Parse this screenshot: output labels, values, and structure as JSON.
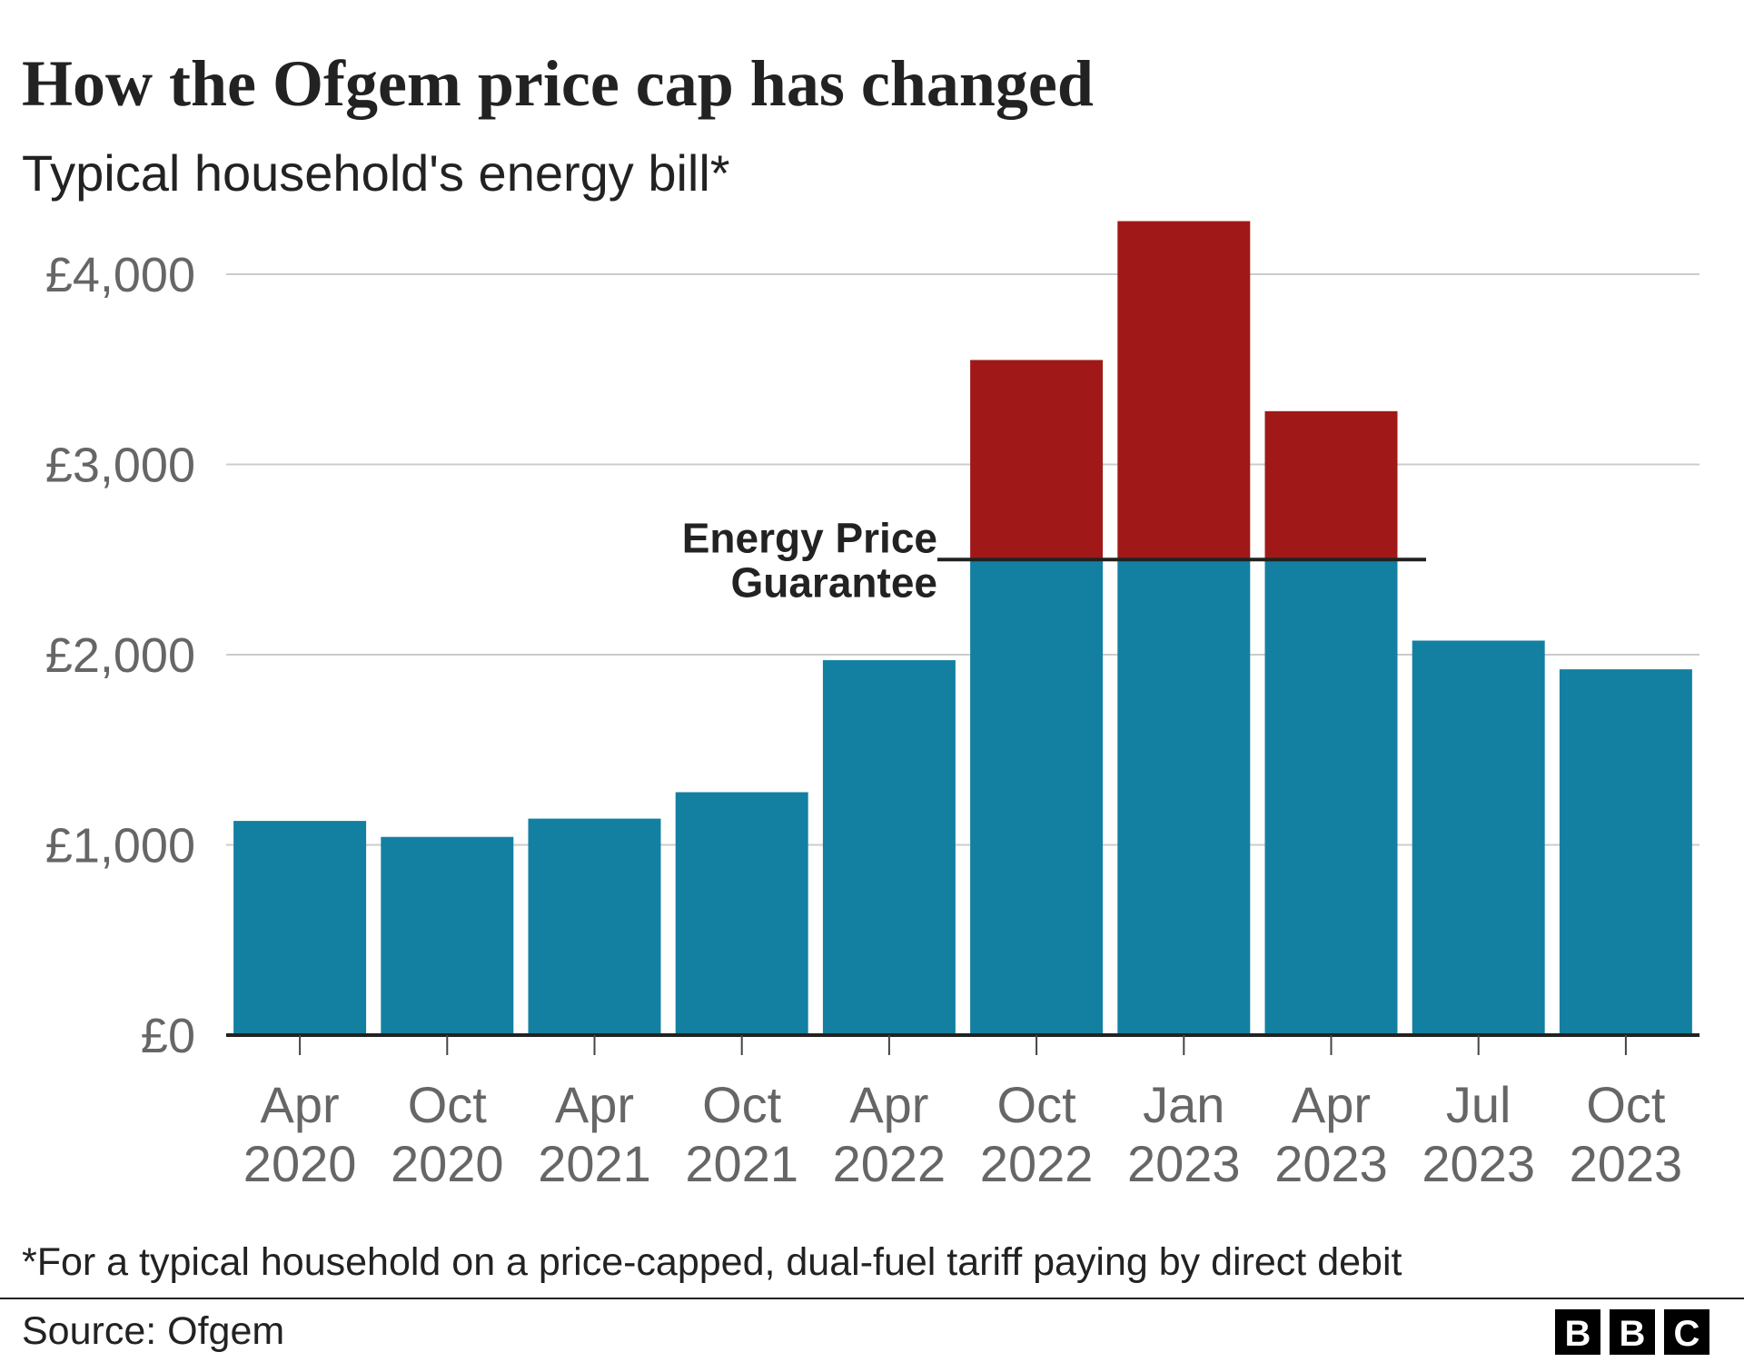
{
  "chart_data": {
    "type": "stacked_bar",
    "title": "How the Ofgem price cap has changed",
    "subtitle": "Typical household's energy bill*",
    "categories": [
      "Apr 2020",
      "Oct 2020",
      "Apr 2021",
      "Oct 2021",
      "Apr 2022",
      "Oct 2022",
      "Jan 2023",
      "Apr 2023",
      "Jul 2023",
      "Oct 2023"
    ],
    "series": [
      {
        "color": "#1380a1",
        "values": [
          1126,
          1042,
          1138,
          1277,
          1971,
          2500,
          2500,
          2500,
          2074,
          1923
        ]
      },
      {
        "color": "#a11818",
        "values": [
          null,
          null,
          null,
          null,
          null,
          1049,
          1779,
          780,
          null,
          null
        ]
      }
    ],
    "ylim": [
      0,
      4000
    ],
    "yticks": [
      {
        "value": 0,
        "label": "£0"
      },
      {
        "value": 1000,
        "label": "£1,000"
      },
      {
        "value": 2000,
        "label": "£2,000"
      },
      {
        "value": 3000,
        "label": "£3,000"
      },
      {
        "value": 4000,
        "label": "£4,000"
      }
    ],
    "grid": true,
    "annotation": {
      "lines": [
        "Energy Price",
        "Guarantee"
      ],
      "value": 2500
    },
    "footnote": "*For a typical household on a price-capped, dual-fuel tariff paying by direct debit",
    "source": "Source: Ofgem",
    "logo": [
      "B",
      "B",
      "C"
    ]
  }
}
